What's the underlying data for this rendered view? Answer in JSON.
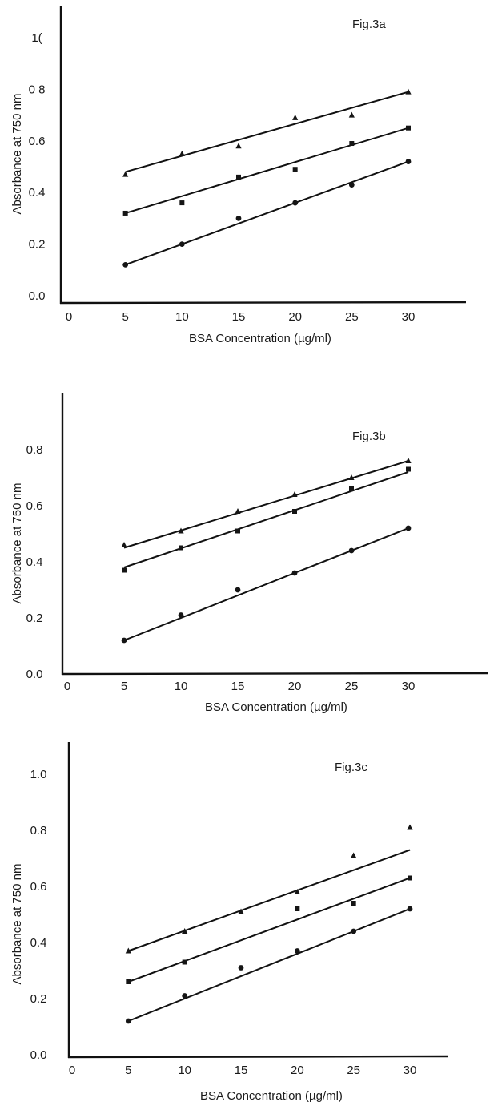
{
  "chart_data": [
    {
      "type": "scatter",
      "title": "Fig.3a",
      "xlabel": "BSA Concentration (µg/ml)",
      "ylabel": "Absorbance at 750 nm",
      "xlim": [
        0,
        35
      ],
      "ylim": [
        0.0,
        1.0
      ],
      "x_ticks": [
        "0",
        "5",
        "10",
        "15",
        "20",
        "25",
        "30"
      ],
      "y_ticks": [
        "0.0",
        "0.2",
        "0.4",
        "0.6",
        "0.8",
        "1.0"
      ],
      "y_tick_labels": [
        "0.0",
        "0.2",
        "0.4",
        "0.6",
        "0 8",
        "1("
      ],
      "grid": false,
      "legend": "none",
      "series": [
        {
          "marker": "triangle",
          "x": [
            5,
            10,
            15,
            20,
            25,
            30
          ],
          "values": [
            0.47,
            0.55,
            0.58,
            0.69,
            0.7,
            0.79
          ],
          "fit": [
            0.48,
            0.79
          ]
        },
        {
          "marker": "square",
          "x": [
            5,
            10,
            15,
            20,
            25,
            30
          ],
          "values": [
            0.32,
            0.36,
            0.46,
            0.49,
            0.59,
            0.65
          ],
          "fit": [
            0.32,
            0.65
          ]
        },
        {
          "marker": "circle",
          "x": [
            5,
            10,
            15,
            20,
            25,
            30
          ],
          "values": [
            0.12,
            0.2,
            0.3,
            0.36,
            0.43,
            0.52
          ],
          "fit": [
            0.12,
            0.52
          ]
        }
      ]
    },
    {
      "type": "scatter",
      "title": "Fig.3b",
      "xlabel": "BSA Concentration (µg/ml)",
      "ylabel": "Absorbance at 750 nm",
      "xlim": [
        0,
        35
      ],
      "ylim": [
        0.0,
        1.0
      ],
      "x_ticks": [
        "0",
        "5",
        "10",
        "15",
        "20",
        "25",
        "30"
      ],
      "y_ticks": [
        "0.0",
        "0.2",
        "0.4",
        "0.6",
        "0.8"
      ],
      "y_tick_labels": [
        "0.0",
        "0.2",
        "0.4",
        "0.6",
        "0.8"
      ],
      "grid": false,
      "legend": "none",
      "series": [
        {
          "marker": "triangle",
          "x": [
            5,
            10,
            15,
            20,
            25,
            30
          ],
          "values": [
            0.46,
            0.51,
            0.58,
            0.64,
            0.7,
            0.76
          ],
          "fit": [
            0.45,
            0.76
          ]
        },
        {
          "marker": "square",
          "x": [
            5,
            10,
            15,
            20,
            25,
            30
          ],
          "values": [
            0.37,
            0.45,
            0.51,
            0.58,
            0.66,
            0.73
          ],
          "fit": [
            0.38,
            0.72
          ]
        },
        {
          "marker": "circle",
          "x": [
            5,
            10,
            15,
            20,
            25,
            30
          ],
          "values": [
            0.12,
            0.21,
            0.3,
            0.36,
            0.44,
            0.52
          ],
          "fit": [
            0.12,
            0.52
          ]
        }
      ]
    },
    {
      "type": "scatter",
      "title": "Fig.3c",
      "xlabel": "BSA Concentration (µg/ml)",
      "ylabel": "Absorbance at 750 nm",
      "xlim": [
        0,
        35
      ],
      "ylim": [
        0.0,
        1.1
      ],
      "x_ticks": [
        "0",
        "5",
        "10",
        "15",
        "20",
        "25",
        "30"
      ],
      "y_ticks": [
        "0.0",
        "0.2",
        "0.4",
        "0.6",
        "0.8",
        "1.0"
      ],
      "y_tick_labels": [
        "0.0",
        "0.2",
        "0.4",
        "0.6",
        "0.8",
        "1.0"
      ],
      "grid": false,
      "legend": "none",
      "series": [
        {
          "marker": "triangle",
          "x": [
            5,
            10,
            15,
            20,
            25,
            30
          ],
          "values": [
            0.37,
            0.44,
            0.51,
            0.58,
            0.71,
            0.81
          ],
          "fit": [
            0.37,
            0.73
          ]
        },
        {
          "marker": "square",
          "x": [
            5,
            10,
            15,
            20,
            25,
            30
          ],
          "values": [
            0.26,
            0.33,
            0.31,
            0.52,
            0.54,
            0.63
          ],
          "fit": [
            0.26,
            0.63
          ]
        },
        {
          "marker": "circle",
          "x": [
            5,
            10,
            15,
            20,
            25,
            30
          ],
          "values": [
            0.12,
            0.21,
            0.31,
            0.37,
            0.44,
            0.52
          ],
          "fit": [
            0.12,
            0.52
          ]
        }
      ]
    }
  ]
}
